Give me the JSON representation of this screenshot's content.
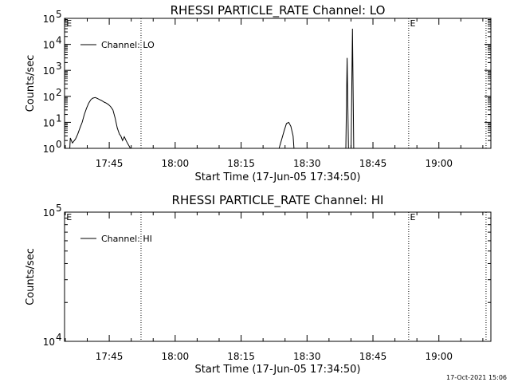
{
  "footer": {
    "timestamp": "17-Oct-2021 15:06"
  },
  "chart_data": [
    {
      "type": "line",
      "title": "RHESSI PARTICLE_RATE Channel: LO",
      "xlabel": "Start Time (17-Jun-05 17:34:50)",
      "ylabel": "Counts/sec",
      "x_unit": "minutes since 17:34:50",
      "xlim": [
        0,
        97
      ],
      "yscale": "log",
      "ylim": [
        1,
        100000
      ],
      "y_ticks": [
        {
          "value": 1,
          "label": "10",
          "exp": "0"
        },
        {
          "value": 10,
          "label": "10",
          "exp": "1"
        },
        {
          "value": 100,
          "label": "10",
          "exp": "2"
        },
        {
          "value": 1000,
          "label": "10",
          "exp": "3"
        },
        {
          "value": 10000,
          "label": "10",
          "exp": "4"
        },
        {
          "value": 100000,
          "label": "10",
          "exp": "5"
        }
      ],
      "x_ticks": [
        {
          "value": 10.17,
          "label": "17:45"
        },
        {
          "value": 25.17,
          "label": "18:00"
        },
        {
          "value": 40.17,
          "label": "18:15"
        },
        {
          "value": 55.17,
          "label": "18:30"
        },
        {
          "value": 70.17,
          "label": "18:45"
        },
        {
          "value": 85.17,
          "label": "19:00"
        }
      ],
      "vlines": [
        17.4,
        78.3,
        95.9
      ],
      "markers": [
        {
          "x": 0.4,
          "label": "E"
        },
        {
          "x": 78.6,
          "label": "E"
        }
      ],
      "legend": {
        "position": "top-left",
        "entries": [
          "Channel: LO"
        ]
      },
      "series": [
        {
          "name": "Channel: LO",
          "segments": [
            [
              [
                1.2,
                1.0
              ],
              [
                1.3,
                2.5
              ],
              [
                1.8,
                1.6
              ],
              [
                2.5,
                2.3
              ],
              [
                3.0,
                3.5
              ],
              [
                3.5,
                6
              ],
              [
                4.0,
                10
              ],
              [
                4.5,
                20
              ],
              [
                5.0,
                35
              ],
              [
                5.5,
                55
              ],
              [
                6.0,
                75
              ],
              [
                6.4,
                85
              ],
              [
                7.0,
                90
              ],
              [
                7.5,
                82
              ],
              [
                8.0,
                75
              ],
              [
                8.5,
                68
              ],
              [
                9.0,
                60
              ],
              [
                9.5,
                55
              ],
              [
                10.0,
                48
              ],
              [
                10.5,
                40
              ],
              [
                11.0,
                30
              ],
              [
                11.5,
                15
              ],
              [
                12.0,
                6
              ],
              [
                12.5,
                3.5
              ],
              [
                12.8,
                3.0
              ],
              [
                13.2,
                2.0
              ],
              [
                13.6,
                2.8
              ],
              [
                14.0,
                2.0
              ],
              [
                14.4,
                1.5
              ],
              [
                15.0,
                1.0
              ]
            ],
            [
              [
                48.8,
                1.0
              ],
              [
                49.5,
                2.5
              ],
              [
                50.0,
                5
              ],
              [
                50.5,
                9
              ],
              [
                51.0,
                10
              ],
              [
                51.5,
                7
              ],
              [
                52.0,
                3
              ],
              [
                52.2,
                1.0
              ]
            ],
            [
              [
                64.0,
                1.0
              ],
              [
                64.3,
                3000
              ],
              [
                64.6,
                1.0
              ]
            ],
            [
              [
                65.2,
                1.0
              ],
              [
                65.5,
                40000
              ],
              [
                65.8,
                1.0
              ]
            ]
          ]
        }
      ]
    },
    {
      "type": "line",
      "title": "RHESSI PARTICLE_RATE Channel: HI",
      "xlabel": "Start Time (17-Jun-05 17:34:50)",
      "ylabel": "Counts/sec",
      "x_unit": "minutes since 17:34:50",
      "xlim": [
        0,
        97
      ],
      "yscale": "log",
      "ylim": [
        10000,
        100000
      ],
      "y_ticks": [
        {
          "value": 10000,
          "label": "10",
          "exp": "4"
        },
        {
          "value": 100000,
          "label": "10",
          "exp": "5"
        }
      ],
      "x_ticks": [
        {
          "value": 10.17,
          "label": "17:45"
        },
        {
          "value": 25.17,
          "label": "18:00"
        },
        {
          "value": 40.17,
          "label": "18:15"
        },
        {
          "value": 55.17,
          "label": "18:30"
        },
        {
          "value": 70.17,
          "label": "18:45"
        },
        {
          "value": 85.17,
          "label": "19:00"
        }
      ],
      "vlines": [
        17.4,
        78.3,
        95.9
      ],
      "markers": [
        {
          "x": 0.4,
          "label": "E"
        },
        {
          "x": 78.6,
          "label": "E"
        }
      ],
      "legend": {
        "position": "top-left",
        "entries": [
          "Channel: HI"
        ]
      },
      "series": [
        {
          "name": "Channel: HI",
          "segments": []
        }
      ]
    }
  ]
}
